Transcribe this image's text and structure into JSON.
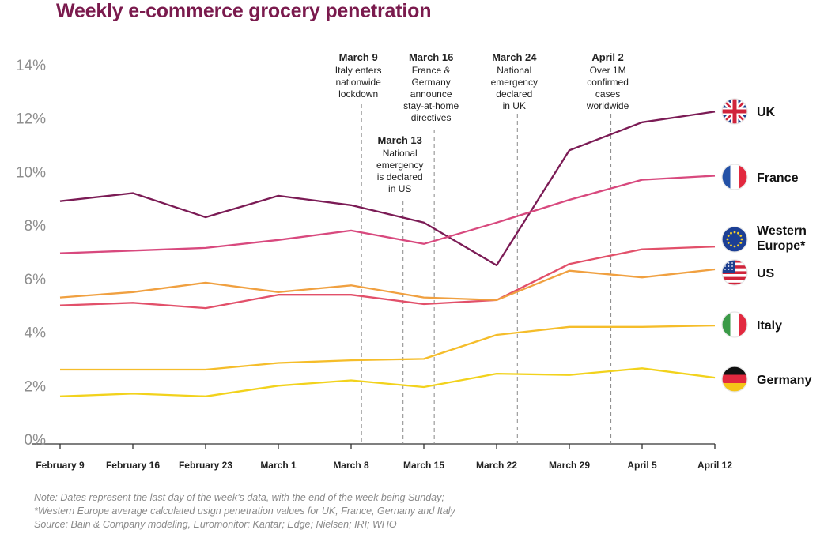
{
  "chart_data": {
    "type": "line",
    "title": "Weekly e-commerce grocery penetration",
    "xlabel": "",
    "ylabel": "",
    "categories": [
      "February 9",
      "February 16",
      "February 23",
      "March 1",
      "March 8",
      "March 15",
      "March 22",
      "March 29",
      "April 5",
      "April 12"
    ],
    "ylim": [
      0,
      14
    ],
    "yticks": [
      "0%",
      "2%",
      "4%",
      "6%",
      "8%",
      "10%",
      "12%",
      "14%"
    ],
    "grid": false,
    "legend": "right, end of lines",
    "series": [
      {
        "name": "UK",
        "color": "#7b1b55",
        "icon": "uk-flag-icon",
        "values": [
          8.9,
          9.2,
          8.3,
          9.1,
          8.75,
          8.1,
          6.5,
          10.8,
          11.85,
          12.25
        ]
      },
      {
        "name": "France",
        "color": "#d8497e",
        "icon": "france-flag-icon",
        "values": [
          6.95,
          7.05,
          7.15,
          7.45,
          7.8,
          7.3,
          8.1,
          8.95,
          9.7,
          9.85
        ]
      },
      {
        "name": "Western Europe*",
        "color": "#e2506a",
        "icon": "eu-flag-icon",
        "values": [
          5.0,
          5.1,
          4.9,
          5.4,
          5.4,
          5.05,
          5.2,
          6.55,
          7.1,
          7.2
        ]
      },
      {
        "name": "US",
        "color": "#f0a040",
        "icon": "us-flag-icon",
        "values": [
          5.3,
          5.5,
          5.85,
          5.5,
          5.75,
          5.3,
          5.2,
          6.3,
          6.05,
          6.35
        ]
      },
      {
        "name": "Italy",
        "color": "#f5bd2a",
        "icon": "italy-flag-icon",
        "values": [
          2.6,
          2.6,
          2.6,
          2.85,
          2.95,
          3.0,
          3.9,
          4.2,
          4.2,
          4.25
        ]
      },
      {
        "name": "Germany",
        "color": "#f2d21c",
        "icon": "germany-flag-icon",
        "values": [
          1.6,
          1.7,
          1.6,
          2.0,
          2.2,
          1.95,
          2.45,
          2.4,
          2.65,
          2.3
        ]
      }
    ],
    "annotations": [
      {
        "x": "March 9",
        "title": "March 9",
        "text": [
          "Italy enters",
          "nationwide",
          "lockdown"
        ]
      },
      {
        "x": "March 13",
        "title": "March 13",
        "text": [
          "National",
          "emergency",
          "is declared",
          "in US"
        ]
      },
      {
        "x": "March 16",
        "title": "March 16",
        "text": [
          "France &",
          "Germany",
          "announce",
          "stay-at-home",
          "directives"
        ]
      },
      {
        "x": "March 24",
        "title": "March 24",
        "text": [
          "National",
          "emergency",
          "declared",
          "in UK"
        ]
      },
      {
        "x": "April 2",
        "title": "April 2",
        "text": [
          "Over 1M",
          "confirmed",
          "cases",
          "worldwide"
        ]
      }
    ]
  },
  "notes": {
    "line1": "Note: Dates represent the last day of the week’s data, with the end of the week being Sunday;",
    "line2": "*Western Europe average calculated usign penetration values for UK, France, Gernany and Italy",
    "source": "Source: Bain & Company modeling, Euromonitor; Kantar; Edge; Nielsen; IRI; WHO"
  }
}
